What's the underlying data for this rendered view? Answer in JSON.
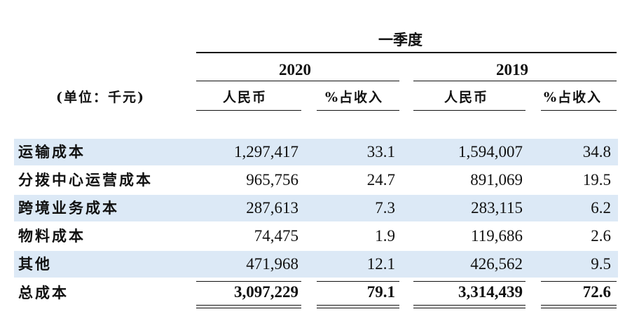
{
  "header": {
    "period": "一季度",
    "year_2020": "2020",
    "year_2019": "2019",
    "unit": "(单位：千元)",
    "col_rmb": "人民币",
    "col_pct": "%占收入"
  },
  "rows": [
    {
      "label": "运输成本",
      "v2020": "1,297,417",
      "p2020": "33.1",
      "v2019": "1,594,007",
      "p2019": "34.8"
    },
    {
      "label": "分拨中心运营成本",
      "v2020": "965,756",
      "p2020": "24.7",
      "v2019": "891,069",
      "p2019": "19.5"
    },
    {
      "label": "跨境业务成本",
      "v2020": "287,613",
      "p2020": "7.3",
      "v2019": "283,115",
      "p2019": "6.2"
    },
    {
      "label": "物料成本",
      "v2020": "74,475",
      "p2020": "1.9",
      "v2019": "119,686",
      "p2019": "2.6"
    },
    {
      "label": "其他",
      "v2020": "471,968",
      "p2020": "12.1",
      "v2019": "426,562",
      "p2019": "9.5"
    }
  ],
  "total": {
    "label": "总成本",
    "v2020": "3,097,229",
    "p2020": "79.1",
    "v2019": "3,314,439",
    "p2019": "72.6"
  },
  "colors": {
    "band": "#dce9f6",
    "text": "#111111"
  }
}
